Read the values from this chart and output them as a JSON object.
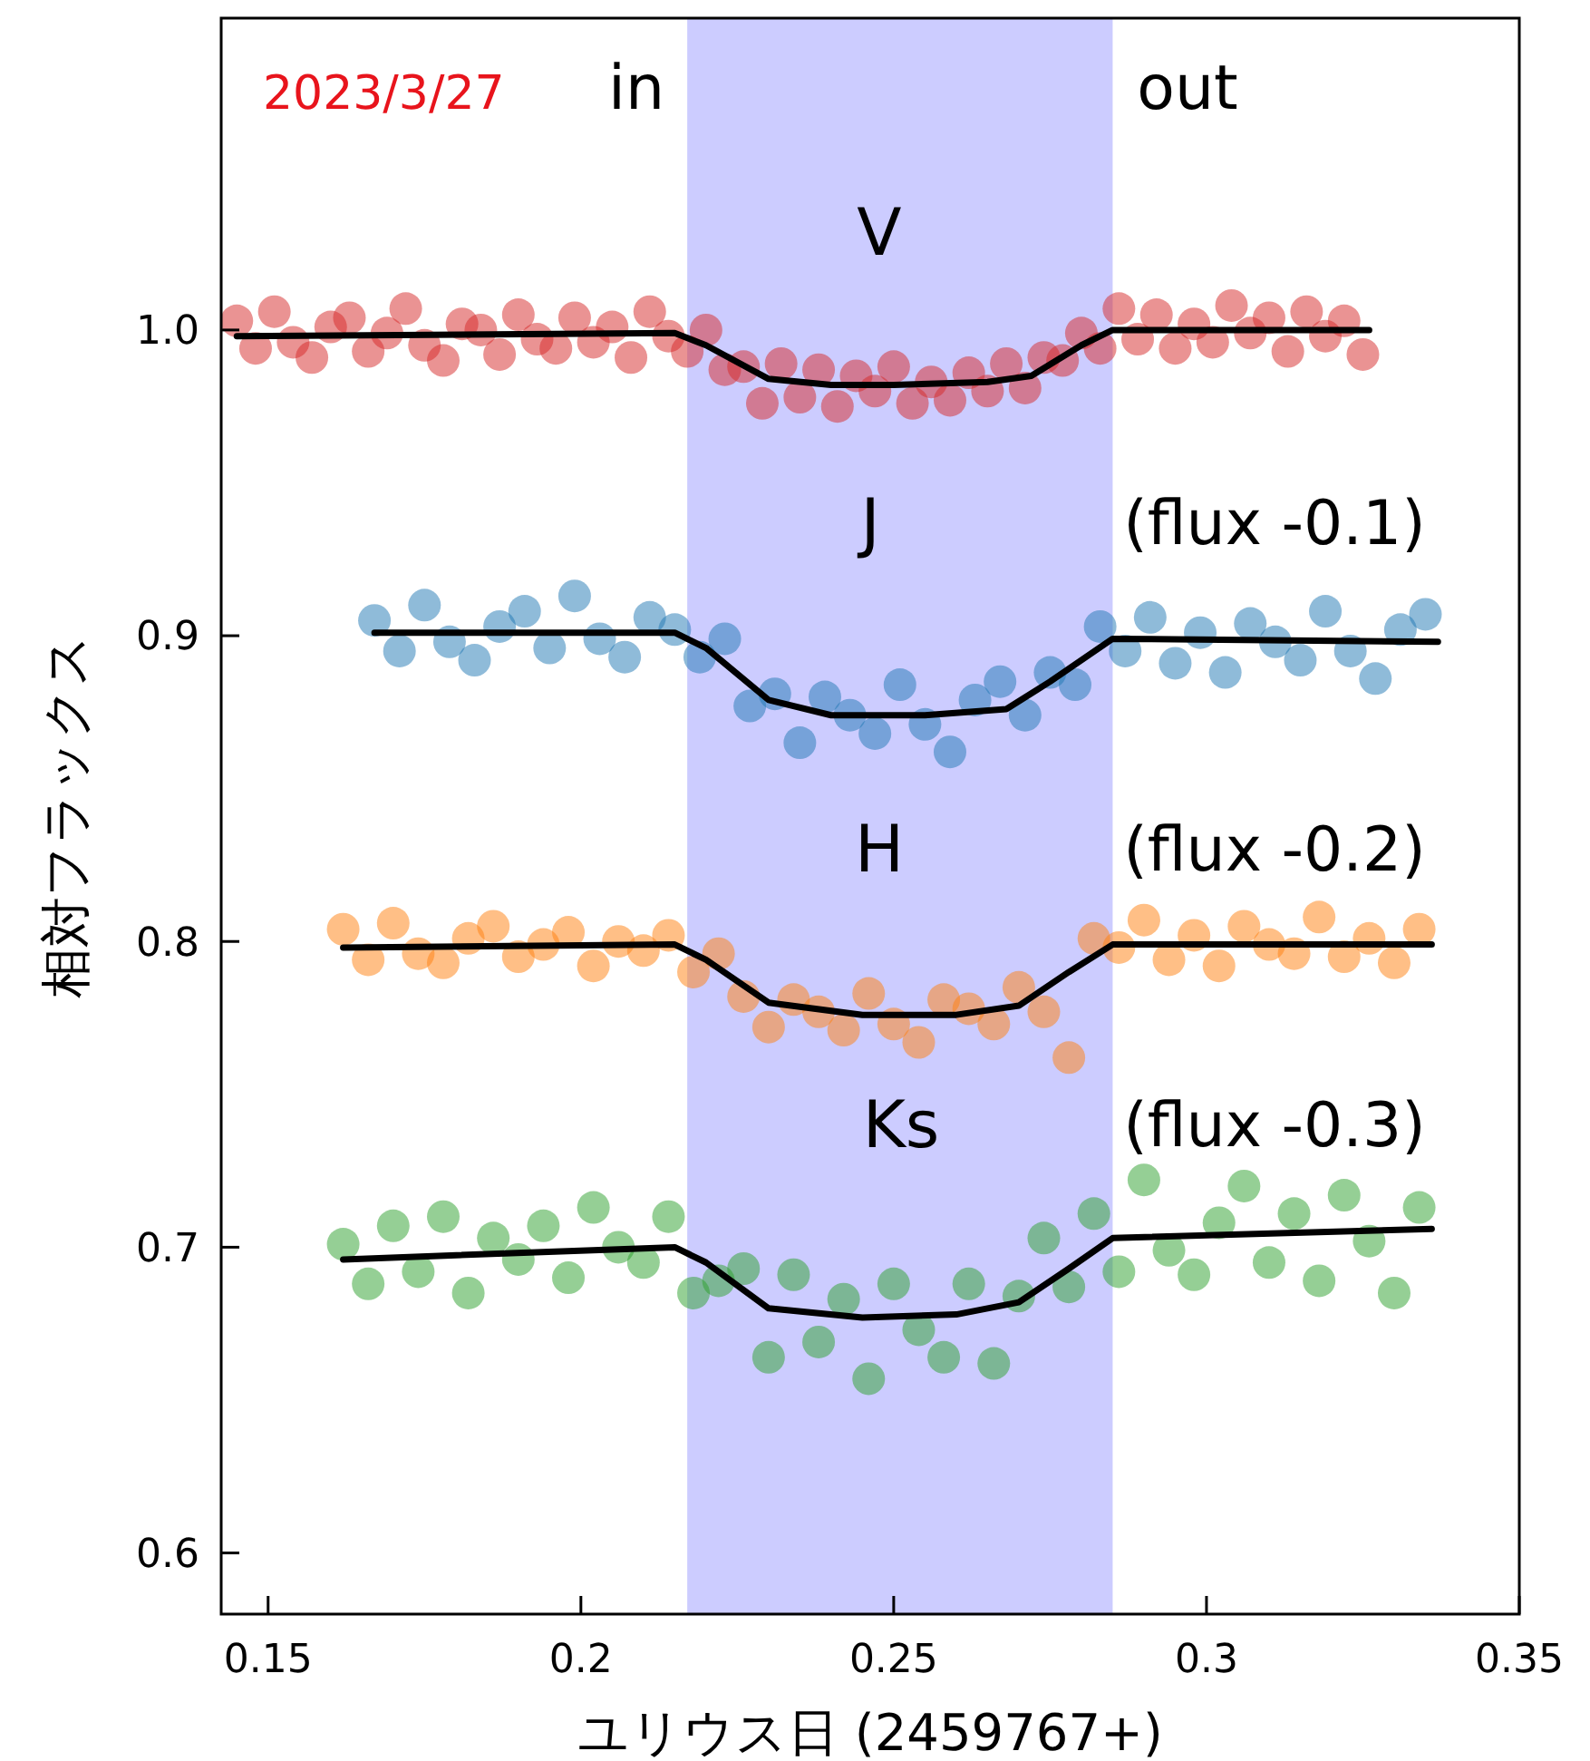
{
  "chart_data": {
    "type": "scatter",
    "xlabel": "ユリウス日 (2459767+)",
    "ylabel": "相対フラックス",
    "xlim": [
      0.1425,
      0.35
    ],
    "ylim": [
      0.58,
      1.102
    ],
    "xticks": [
      0.15,
      0.2,
      0.25,
      0.3,
      0.35
    ],
    "yticks": [
      0.6,
      0.7,
      0.8,
      0.9,
      {
        "value": 1,
        "label": "1.0"
      }
    ],
    "bands": [
      {
        "axis": "x",
        "from": 0.217,
        "to": 0.285,
        "color": "#ccccff"
      }
    ],
    "annotations": [
      "2023/3/27",
      "in",
      "out",
      "V",
      "J",
      "(flux -0.1)",
      "H",
      "(flux -0.2)",
      "Ks",
      "(flux -0.3)"
    ],
    "series": [
      {
        "marker": "circle",
        "color": "#d62728",
        "x": [
          0.145,
          0.148,
          0.151,
          0.154,
          0.157,
          0.16,
          0.163,
          0.166,
          0.169,
          0.172,
          0.175,
          0.178,
          0.181,
          0.184,
          0.187,
          0.19,
          0.193,
          0.196,
          0.199,
          0.202,
          0.205,
          0.208,
          0.211,
          0.214,
          0.217,
          0.22,
          0.223,
          0.226,
          0.229,
          0.232,
          0.235,
          0.238,
          0.241,
          0.244,
          0.247,
          0.25,
          0.253,
          0.256,
          0.259,
          0.262,
          0.265,
          0.268,
          0.271,
          0.274,
          0.277,
          0.28,
          0.283,
          0.286,
          0.289,
          0.292,
          0.295,
          0.298,
          0.301,
          0.304,
          0.307,
          0.31,
          0.313,
          0.316,
          0.319,
          0.322,
          0.325
        ],
        "values": [
          1.003,
          0.994,
          1.006,
          0.996,
          0.991,
          1.001,
          1.004,
          0.993,
          0.999,
          1.007,
          0.995,
          0.99,
          1.002,
          1.0,
          0.992,
          1.005,
          0.997,
          0.994,
          1.004,
          0.996,
          1.001,
          0.991,
          1.006,
          0.998,
          0.993,
          1.0,
          0.987,
          0.988,
          0.976,
          0.989,
          0.978,
          0.987,
          0.975,
          0.985,
          0.98,
          0.988,
          0.976,
          0.983,
          0.977,
          0.986,
          0.98,
          0.989,
          0.981,
          0.991,
          0.99,
          0.999,
          0.994,
          1.007,
          0.997,
          1.005,
          0.994,
          1.002,
          0.996,
          1.008,
          0.999,
          1.004,
          0.993,
          1.006,
          0.998,
          1.003,
          0.992
        ]
      },
      {
        "marker": "circle",
        "color": "#1f77b4",
        "x": [
          0.167,
          0.171,
          0.175,
          0.179,
          0.183,
          0.187,
          0.191,
          0.195,
          0.199,
          0.203,
          0.207,
          0.211,
          0.215,
          0.219,
          0.223,
          0.227,
          0.231,
          0.235,
          0.239,
          0.243,
          0.247,
          0.251,
          0.255,
          0.259,
          0.263,
          0.267,
          0.271,
          0.275,
          0.279,
          0.283,
          0.287,
          0.291,
          0.295,
          0.299,
          0.303,
          0.307,
          0.311,
          0.315,
          0.319,
          0.323,
          0.327,
          0.331,
          0.335
        ],
        "values": [
          0.905,
          0.895,
          0.91,
          0.898,
          0.892,
          0.903,
          0.908,
          0.896,
          0.913,
          0.899,
          0.893,
          0.906,
          0.902,
          0.893,
          0.899,
          0.877,
          0.881,
          0.865,
          0.88,
          0.874,
          0.868,
          0.884,
          0.871,
          0.862,
          0.879,
          0.885,
          0.874,
          0.888,
          0.884,
          0.903,
          0.895,
          0.906,
          0.891,
          0.901,
          0.888,
          0.904,
          0.898,
          0.892,
          0.908,
          0.895,
          0.886,
          0.902,
          0.907
        ]
      },
      {
        "marker": "circle",
        "color": "#ff7f0e",
        "x": [
          0.162,
          0.166,
          0.17,
          0.174,
          0.178,
          0.182,
          0.186,
          0.19,
          0.194,
          0.198,
          0.202,
          0.206,
          0.21,
          0.214,
          0.218,
          0.222,
          0.226,
          0.23,
          0.234,
          0.238,
          0.242,
          0.246,
          0.25,
          0.254,
          0.258,
          0.262,
          0.266,
          0.27,
          0.274,
          0.278,
          0.282,
          0.286,
          0.29,
          0.294,
          0.298,
          0.302,
          0.306,
          0.31,
          0.314,
          0.318,
          0.322,
          0.326,
          0.33,
          0.334
        ],
        "values": [
          0.804,
          0.794,
          0.806,
          0.796,
          0.793,
          0.801,
          0.805,
          0.795,
          0.799,
          0.803,
          0.792,
          0.8,
          0.797,
          0.802,
          0.79,
          0.796,
          0.782,
          0.772,
          0.781,
          0.777,
          0.771,
          0.783,
          0.773,
          0.767,
          0.781,
          0.778,
          0.773,
          0.785,
          0.777,
          0.762,
          0.801,
          0.798,
          0.807,
          0.794,
          0.802,
          0.792,
          0.805,
          0.799,
          0.796,
          0.808,
          0.795,
          0.801,
          0.793,
          0.804
        ]
      },
      {
        "marker": "circle",
        "color": "#2ca02c",
        "x": [
          0.162,
          0.166,
          0.17,
          0.174,
          0.178,
          0.182,
          0.186,
          0.19,
          0.194,
          0.198,
          0.202,
          0.206,
          0.21,
          0.214,
          0.218,
          0.222,
          0.226,
          0.23,
          0.234,
          0.238,
          0.242,
          0.246,
          0.25,
          0.254,
          0.258,
          0.262,
          0.266,
          0.27,
          0.274,
          0.278,
          0.282,
          0.286,
          0.29,
          0.294,
          0.298,
          0.302,
          0.306,
          0.31,
          0.314,
          0.318,
          0.322,
          0.326,
          0.33,
          0.334
        ],
        "values": [
          0.701,
          0.688,
          0.707,
          0.692,
          0.71,
          0.685,
          0.703,
          0.696,
          0.707,
          0.69,
          0.713,
          0.7,
          0.695,
          0.71,
          0.685,
          0.689,
          0.693,
          0.664,
          0.691,
          0.669,
          0.683,
          0.657,
          0.688,
          0.673,
          0.664,
          0.688,
          0.662,
          0.684,
          0.703,
          0.687,
          0.711,
          0.692,
          0.722,
          0.699,
          0.691,
          0.708,
          0.72,
          0.695,
          0.711,
          0.689,
          0.717,
          0.702,
          0.685,
          0.713
        ]
      },
      {
        "type": "line",
        "marker": "none",
        "color": "#000000",
        "x": [
          0.145,
          0.215,
          0.22,
          0.23,
          0.24,
          0.25,
          0.265,
          0.272,
          0.28,
          0.285,
          0.326
        ],
        "values": [
          0.998,
          0.999,
          0.995,
          0.984,
          0.982,
          0.982,
          0.983,
          0.985,
          0.995,
          1.0,
          1.0
        ]
      },
      {
        "type": "line",
        "marker": "none",
        "color": "#000000",
        "x": [
          0.167,
          0.215,
          0.22,
          0.23,
          0.24,
          0.255,
          0.268,
          0.275,
          0.285,
          0.337
        ],
        "values": [
          0.901,
          0.901,
          0.896,
          0.879,
          0.874,
          0.874,
          0.876,
          0.885,
          0.899,
          0.898
        ]
      },
      {
        "type": "line",
        "marker": "none",
        "color": "#000000",
        "x": [
          0.162,
          0.215,
          0.22,
          0.23,
          0.245,
          0.26,
          0.27,
          0.278,
          0.285,
          0.336
        ],
        "values": [
          0.798,
          0.799,
          0.794,
          0.78,
          0.776,
          0.776,
          0.779,
          0.79,
          0.799,
          0.799
        ]
      },
      {
        "type": "line",
        "marker": "none",
        "color": "#000000",
        "x": [
          0.162,
          0.215,
          0.22,
          0.23,
          0.245,
          0.26,
          0.27,
          0.278,
          0.285,
          0.336
        ],
        "values": [
          0.696,
          0.7,
          0.695,
          0.68,
          0.677,
          0.678,
          0.682,
          0.693,
          0.703,
          0.706
        ]
      }
    ]
  }
}
